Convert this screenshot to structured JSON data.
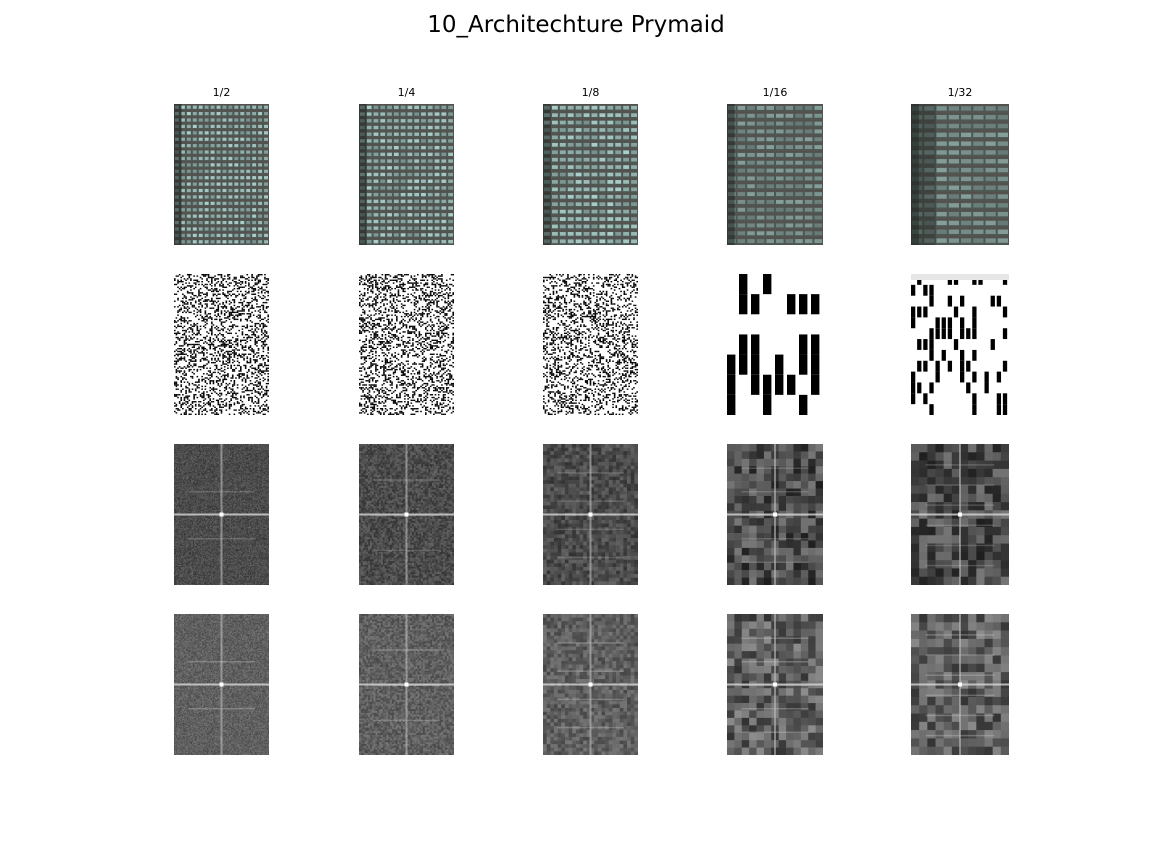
{
  "figure": {
    "title": "10_Architechture Prymaid"
  },
  "columns": [
    {
      "label": "1/2",
      "scale": 0.5
    },
    {
      "label": "1/4",
      "scale": 0.25
    },
    {
      "label": "1/8",
      "scale": 0.125
    },
    {
      "label": "1/16",
      "scale": 0.0625
    },
    {
      "label": "1/32",
      "scale": 0.03125
    }
  ],
  "rows": [
    {
      "content": "building-photo"
    },
    {
      "content": "edge-map"
    },
    {
      "content": "fourier-spectrum"
    },
    {
      "content": "fourier-spectrum-highpass"
    }
  ],
  "colors": {
    "background": "#ffffff",
    "glass": "#a7c2bf",
    "frame": "#5b4c4a",
    "spectrum_base": "#5a5a5a"
  }
}
